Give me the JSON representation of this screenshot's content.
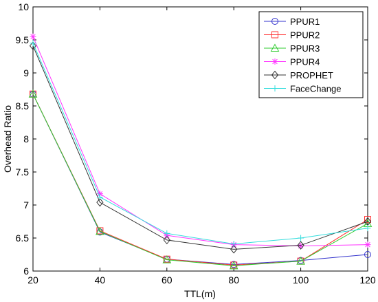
{
  "chart_data": {
    "type": "line",
    "title": "",
    "xlabel": "TTL(m)",
    "ylabel": "Overhead Ratio",
    "x": [
      20,
      40,
      60,
      80,
      100,
      120
    ],
    "xlim": [
      20,
      120
    ],
    "ylim": [
      6,
      10
    ],
    "xticks": [
      "20",
      "40",
      "60",
      "80",
      "100",
      "120"
    ],
    "yticks": [
      "6",
      "6.5",
      "7",
      "7.5",
      "8",
      "8.5",
      "9",
      "9.5",
      "10"
    ],
    "grid": false,
    "legend_position": "top-right",
    "series": [
      {
        "name": "PPUR1",
        "color": "#3333cc",
        "marker": "circle",
        "values": [
          8.68,
          6.59,
          6.18,
          6.1,
          6.16,
          6.25
        ]
      },
      {
        "name": "PPUR2",
        "color": "#ff3333",
        "marker": "square",
        "values": [
          8.68,
          6.61,
          6.18,
          6.09,
          6.15,
          6.78
        ]
      },
      {
        "name": "PPUR3",
        "color": "#33cc33",
        "marker": "triangle",
        "values": [
          8.68,
          6.6,
          6.17,
          6.08,
          6.15,
          6.72
        ]
      },
      {
        "name": "PPUR4",
        "color": "#ff33ff",
        "marker": "star",
        "values": [
          9.55,
          7.17,
          6.54,
          6.4,
          6.38,
          6.4
        ]
      },
      {
        "name": "PROPHET",
        "color": "#333333",
        "marker": "diamond",
        "values": [
          9.41,
          7.04,
          6.47,
          6.33,
          6.39,
          6.75
        ]
      },
      {
        "name": "FaceChange",
        "color": "#33dddd",
        "marker": "plus",
        "values": [
          9.45,
          7.12,
          6.57,
          6.41,
          6.5,
          6.65
        ]
      }
    ]
  }
}
